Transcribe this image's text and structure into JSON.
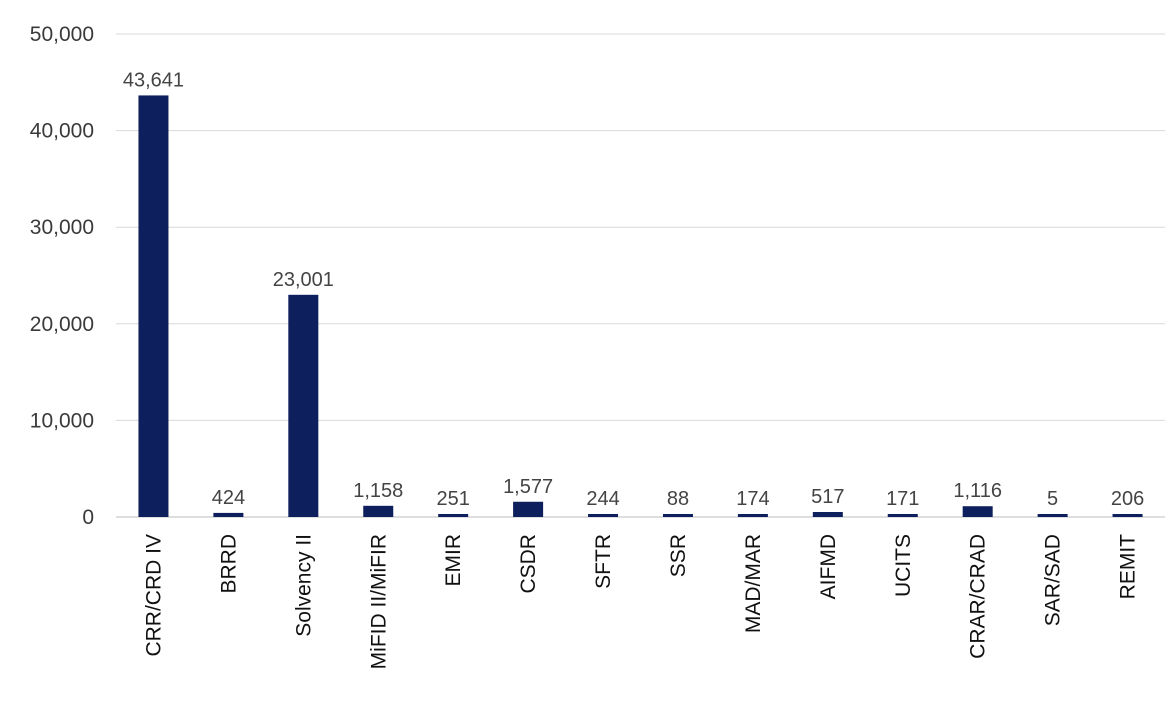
{
  "chart_data": {
    "type": "bar",
    "title": "",
    "xlabel": "",
    "ylabel": "",
    "ylim": [
      0,
      50000
    ],
    "yticks": [
      "0",
      "10,000",
      "20,000",
      "30,000",
      "40,000",
      "50,000"
    ],
    "grid": true,
    "bar_color": "#0d1f5c",
    "categories": [
      "CRR/CRD IV",
      "BRRD",
      "Solvency II",
      "MiFID II/MiFIR",
      "EMIR",
      "CSDR",
      "SFTR",
      "SSR",
      "MAD/MAR",
      "AIFMD",
      "UCITS",
      "CRAR/CRAD",
      "SAR/SAD",
      "REMIT"
    ],
    "values": [
      43641,
      424,
      23001,
      1158,
      251,
      1577,
      244,
      88,
      174,
      517,
      171,
      1116,
      5,
      206
    ],
    "data_labels": [
      "43,641",
      "424",
      "23,001",
      "1,158",
      "251",
      "1,577",
      "244",
      "88",
      "174",
      "517",
      "171",
      "1,116",
      "5",
      "206"
    ]
  }
}
